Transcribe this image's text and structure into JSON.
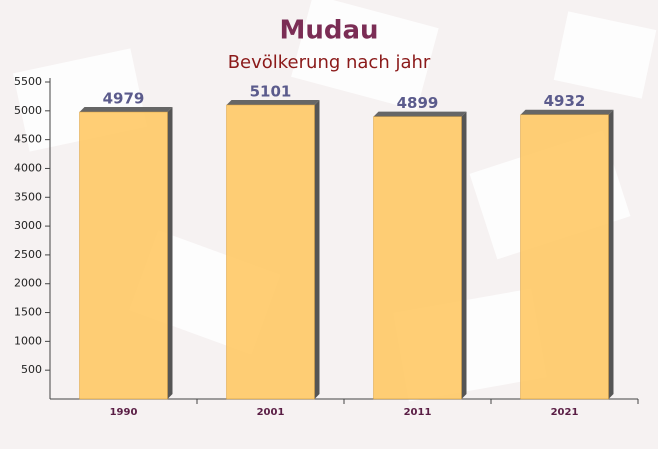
{
  "chart_data": {
    "type": "bar",
    "title": "Mudau",
    "subtitle": "Bevölkerung nach jahr",
    "categories": [
      "1990",
      "2001",
      "2011",
      "2021"
    ],
    "values": [
      4979,
      5101,
      4899,
      4932
    ],
    "color": "#ffc966",
    "ylim": [
      0,
      5500
    ],
    "yticks": [
      500,
      1000,
      1500,
      2000,
      2500,
      3000,
      3500,
      4000,
      4500,
      5000,
      5500
    ]
  }
}
